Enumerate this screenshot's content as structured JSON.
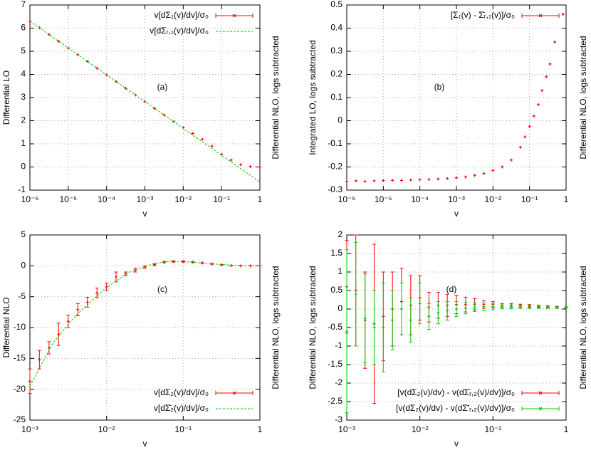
{
  "chart_data": [
    {
      "type": "scatter",
      "ylabel": "Differential LO",
      "right_label": "Differential NLO, logs subtracted",
      "xlabel": "v",
      "annotation": "(a)",
      "log_x": true,
      "grid": true,
      "legend": "upper right",
      "xlim": [
        1e-06,
        1
      ],
      "ylim": [
        -1,
        7
      ],
      "xticks": [
        {
          "value": 1e-06,
          "label": "10⁻⁶"
        },
        {
          "value": 1e-05,
          "label": "10⁻⁵"
        },
        {
          "value": 0.0001,
          "label": "10⁻⁴"
        },
        {
          "value": 0.001,
          "label": "10⁻³"
        },
        {
          "value": 0.01,
          "label": "10⁻²"
        },
        {
          "value": 0.1,
          "label": "10⁻¹"
        },
        1
      ],
      "yticks": [
        -1,
        0,
        1,
        2,
        3,
        4,
        5,
        6,
        7
      ],
      "series": [
        {
          "name": "v[dΣ₁(v)/dv]/σ₀",
          "color": "#ff0000",
          "style": "points",
          "x": [
            1e-06,
            1.78e-06,
            3.16e-06,
            5.62e-06,
            1e-05,
            1.78e-05,
            3.16e-05,
            5.62e-05,
            0.0001,
            0.000178,
            0.000316,
            0.000562,
            0.001,
            0.00178,
            0.00316,
            0.00562,
            0.01,
            0.0178,
            0.0316,
            0.0562,
            0.1,
            0.178,
            0.316,
            0.562,
            1
          ],
          "values": [
            6.3,
            6.01,
            5.72,
            5.43,
            5.14,
            4.85,
            4.56,
            4.27,
            3.98,
            3.69,
            3.4,
            3.11,
            2.82,
            2.53,
            2.25,
            1.96,
            1.7,
            1.45,
            1.2,
            0.9,
            0.55,
            0.3,
            0.1,
            0.02,
            0
          ]
        },
        {
          "name": "v[dΣᵣ,₁(v)/dv]/σ₀",
          "color": "#00cc00",
          "style": "line",
          "x": [
            1e-06,
            1
          ],
          "values": [
            6.3,
            -0.65
          ]
        }
      ]
    },
    {
      "type": "scatter",
      "ylabel": "Integrated LO, logs subtracted",
      "right_label": "Differential NLO, logs subtracted",
      "xlabel": "v",
      "annotation": "(b)",
      "log_x": true,
      "grid": true,
      "legend": "upper right",
      "xlim": [
        1e-06,
        1
      ],
      "ylim": [
        -0.3,
        0.5
      ],
      "xticks": [
        {
          "value": 1e-06,
          "label": "10⁻⁶"
        },
        {
          "value": 1e-05,
          "label": "10⁻⁵"
        },
        {
          "value": 0.0001,
          "label": "10⁻⁴"
        },
        {
          "value": 0.001,
          "label": "10⁻³"
        },
        {
          "value": 0.01,
          "label": "10⁻²"
        },
        {
          "value": 0.1,
          "label": "10⁻¹"
        },
        1
      ],
      "yticks": [
        -0.3,
        -0.2,
        -0.1,
        0,
        0.1,
        0.2,
        0.3,
        0.4,
        0.5
      ],
      "series": [
        {
          "name": "[Σ₁(v) - Σ̄ᵣ,₁(v)]/σ₀",
          "color": "#ff0000",
          "style": "points",
          "x": [
            1e-06,
            1.78e-06,
            3.16e-06,
            5.62e-06,
            1e-05,
            1.78e-05,
            3.16e-05,
            5.62e-05,
            0.0001,
            0.000178,
            0.000316,
            0.000562,
            0.001,
            0.00178,
            0.00316,
            0.00562,
            0.01,
            0.0178,
            0.0316,
            0.0562,
            0.075,
            0.1,
            0.132,
            0.174,
            0.219,
            0.288,
            0.363,
            0.49,
            0.83
          ],
          "values": [
            -0.262,
            -0.26,
            -0.262,
            -0.26,
            -0.259,
            -0.258,
            -0.258,
            -0.256,
            -0.255,
            -0.254,
            -0.252,
            -0.25,
            -0.247,
            -0.243,
            -0.236,
            -0.228,
            -0.215,
            -0.2,
            -0.17,
            -0.115,
            -0.07,
            -0.025,
            0.02,
            0.07,
            0.13,
            0.19,
            0.245,
            0.34,
            0.46
          ]
        }
      ]
    },
    {
      "type": "scatter",
      "ylabel": "Differential NLO",
      "right_label": "Differential NLO, logs subtracted",
      "xlabel": "v",
      "annotation": "(c)",
      "log_x": true,
      "grid": true,
      "legend": "lower right",
      "xlim": [
        0.001,
        1
      ],
      "ylim": [
        -25,
        5
      ],
      "xticks": [
        {
          "value": 0.001,
          "label": "10⁻³"
        },
        {
          "value": 0.01,
          "label": "10⁻²"
        },
        {
          "value": 0.1,
          "label": "10⁻¹"
        },
        1
      ],
      "yticks": [
        -25,
        -20,
        -15,
        -10,
        -5,
        0,
        5
      ],
      "series": [
        {
          "name": "v[dΣ₂(v)/dv]/σ₀",
          "color": "#ff0000",
          "style": "points",
          "x": [
            0.001,
            0.00133,
            0.00178,
            0.00237,
            0.00316,
            0.00422,
            0.00562,
            0.0075,
            0.01,
            0.0133,
            0.0178,
            0.0237,
            0.0316,
            0.0422,
            0.0562,
            0.075,
            0.1,
            0.133,
            0.178,
            0.237,
            0.316,
            0.422,
            0.562,
            0.75,
            1
          ],
          "values": [
            -18.7,
            -15.2,
            -13.3,
            -11.1,
            -9,
            -7.1,
            -5.9,
            -4.4,
            -3.4,
            -1.8,
            -1.3,
            -0.7,
            -0.2,
            0.2,
            0.6,
            0.7,
            0.7,
            0.6,
            0.45,
            0.3,
            0.15,
            0.05,
            0,
            0,
            0
          ],
          "errors": [
            2,
            1.5,
            1,
            1.8,
            1,
            1,
            0.8,
            0.8,
            0.6,
            0.8,
            0.3,
            0.3,
            0.2,
            0.15,
            0.1,
            0.1,
            0.1,
            0.08,
            0.06,
            0.05,
            0.04,
            0.03,
            0.02,
            0.02,
            0.01
          ]
        },
        {
          "name": "v[dΣ̄₂(v)/dv]/σ₀",
          "color": "#00cc00",
          "style": "line",
          "x": [
            0.001,
            0.002,
            0.004,
            0.01,
            0.02,
            0.04,
            0.07,
            0.1,
            0.2,
            0.5,
            1
          ],
          "values": [
            -19.5,
            -12.5,
            -8,
            -3.5,
            -1,
            0.3,
            0.75,
            0.7,
            0.4,
            0.05,
            0
          ]
        }
      ]
    },
    {
      "type": "scatter",
      "ylabel": "Differential NLO, logs subtracted",
      "right_label": "Differential NLO, logs subtracted",
      "xlabel": "v",
      "annotation": "(d)",
      "log_x": true,
      "grid": true,
      "legend": "lower right",
      "xlim": [
        0.001,
        1
      ],
      "ylim": [
        -3,
        2
      ],
      "xticks": [
        {
          "value": 0.001,
          "label": "10⁻³"
        },
        {
          "value": 0.01,
          "label": "10⁻²"
        },
        {
          "value": 0.1,
          "label": "10⁻¹"
        },
        1
      ],
      "yticks": [
        -3,
        -2.5,
        -2,
        -1.5,
        -1,
        -0.5,
        0,
        0.5,
        1,
        1.5,
        2
      ],
      "series": [
        {
          "name": "[v(dΣ₂(v)/dv) - v(dΣ̄ᵣ,₂(v)/dv)]/σ₀",
          "color": "#ff0000",
          "style": "points",
          "x": [
            0.001,
            0.00133,
            0.00178,
            0.00237,
            0.00316,
            0.00422,
            0.00562,
            0.0075,
            0.01,
            0.0133,
            0.0178,
            0.0237,
            0.0316,
            0.0422,
            0.0562,
            0.075,
            0.1,
            0.133,
            0.178,
            0.237,
            0.316,
            0.422,
            0.562,
            0.75,
            1
          ],
          "values": [
            0.6,
            0.5,
            -0.3,
            -0.4,
            -0.2,
            0,
            0.2,
            0.1,
            0.3,
            0.05,
            0.1,
            0.1,
            0.12,
            0.12,
            0.13,
            0.12,
            0.12,
            0.1,
            0.1,
            0.09,
            0.08,
            0.07,
            0.06,
            0.05,
            0.04
          ],
          "errors": [
            1.25,
            1.5,
            1.3,
            2.15,
            1.2,
            1,
            0.9,
            0.8,
            0.6,
            0.4,
            0.35,
            0.3,
            0.25,
            0.2,
            0.15,
            0.1,
            0.08,
            0.05,
            0.05,
            0.04,
            0.04,
            0.03,
            0.03,
            0.02,
            0.02
          ]
        },
        {
          "name": "[v(dΣ₂(v)/dv) - v(dΣ̄′ᵣ,₂(v)/dv)]/σ₀",
          "color": "#00cc00",
          "style": "points",
          "x": [
            0.001,
            0.00133,
            0.00178,
            0.00237,
            0.00316,
            0.00422,
            0.00562,
            0.0075,
            0.01,
            0.0133,
            0.0178,
            0.0237,
            0.0316,
            0.0422,
            0.0562,
            0.075,
            0.1,
            0.133,
            0.178,
            0.237,
            0.316,
            0.422,
            0.562,
            0.75,
            1
          ],
          "values": [
            -0.6,
            0.4,
            -0.25,
            -0.5,
            -0.5,
            -0.3,
            0,
            -0.3,
            0.15,
            -0.2,
            -0.1,
            -0.05,
            0,
            0.02,
            0.05,
            0.06,
            0.06,
            0.06,
            0.06,
            0.06,
            0.06,
            0.05,
            0.05,
            0.04,
            0.04
          ],
          "errors": [
            2.2,
            1.4,
            1.2,
            1,
            1.2,
            0.8,
            0.7,
            0.6,
            0.55,
            0.35,
            0.3,
            0.25,
            0.2,
            0.15,
            0.12,
            0.1,
            0.08,
            0.05,
            0.05,
            0.04,
            0.04,
            0.03,
            0.03,
            0.02,
            0.02
          ]
        }
      ]
    }
  ]
}
